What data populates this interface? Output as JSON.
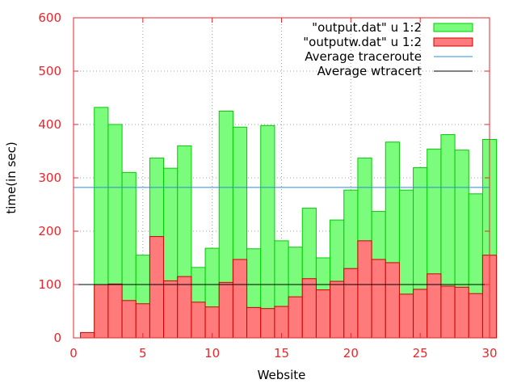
{
  "chart_data": {
    "type": "bar",
    "xlabel": "Website",
    "ylabel": "time(in sec)",
    "xlim": [
      0,
      30
    ],
    "ylim": [
      0,
      600
    ],
    "xticks": [
      0,
      5,
      10,
      15,
      20,
      25,
      30
    ],
    "yticks": [
      0,
      100,
      200,
      300,
      400,
      500,
      600
    ],
    "grid": true,
    "legend_position": "top-right",
    "bar_width": 1,
    "series": [
      {
        "name": "\"output.dat\" u 1:2",
        "color": "#7cfc7c",
        "edge_color": "#00cc00",
        "x": [
          2,
          3,
          4,
          5,
          6,
          7,
          8,
          9,
          10,
          11,
          12,
          13,
          14,
          15,
          16,
          17,
          18,
          19,
          20,
          21,
          22,
          23,
          24,
          25,
          26,
          27,
          28,
          29,
          30
        ],
        "values": [
          432,
          400,
          310,
          155,
          337,
          318,
          360,
          132,
          168,
          425,
          395,
          167,
          398,
          182,
          170,
          243,
          150,
          221,
          277,
          337,
          237,
          367,
          277,
          319,
          354,
          381,
          352,
          270,
          372
        ]
      },
      {
        "name": "\"outputw.dat\" u 1:2",
        "color": "#ff7a7a",
        "edge_color": "#cc0000",
        "x": [
          1,
          2,
          3,
          4,
          5,
          6,
          7,
          8,
          9,
          10,
          11,
          12,
          13,
          14,
          15,
          16,
          17,
          18,
          19,
          20,
          21,
          22,
          23,
          24,
          25,
          26,
          27,
          28,
          29,
          30
        ],
        "values": [
          10,
          100,
          101,
          70,
          64,
          190,
          107,
          115,
          67,
          58,
          104,
          147,
          57,
          55,
          59,
          77,
          111,
          90,
          106,
          130,
          182,
          147,
          141,
          82,
          91,
          120,
          97,
          95,
          83,
          155
        ]
      }
    ],
    "reference_lines": [
      {
        "name": "Average traceroute",
        "y": 282,
        "color": "#2b8cd8"
      },
      {
        "name": "Average wtracert",
        "y": 100,
        "color": "#000000"
      }
    ]
  }
}
